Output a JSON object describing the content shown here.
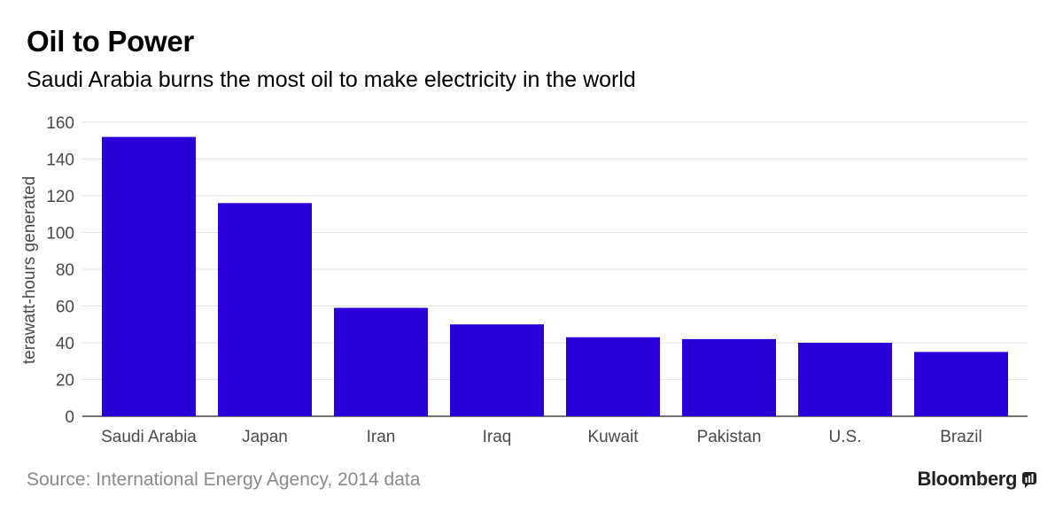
{
  "header": {
    "title": "Oil to Power",
    "subtitle": "Saudi Arabia burns the most oil to make electricity in the world"
  },
  "footer": {
    "source": "Source: International Energy Agency, 2014 data",
    "brand": "Bloomberg",
    "brand_icon": "bloomberg-terminal-icon"
  },
  "colors": {
    "bar": "#2a00d8",
    "grid": "#e6e6e6",
    "axis": "#222222"
  },
  "chart_data": {
    "type": "bar",
    "title": "Oil to Power",
    "subtitle": "Saudi Arabia burns the most oil to make electricity in the world",
    "categories": [
      "Saudi Arabia",
      "Japan",
      "Iran",
      "Iraq",
      "Kuwait",
      "Pakistan",
      "U.S.",
      "Brazil"
    ],
    "values": [
      152,
      116,
      59,
      50,
      43,
      42,
      40,
      35
    ],
    "xlabel": "",
    "ylabel": "terawatt-hours generated",
    "ylim": [
      0,
      160
    ],
    "yticks": [
      0,
      20,
      40,
      60,
      80,
      100,
      120,
      140,
      160
    ],
    "grid": true,
    "legend": "none"
  }
}
